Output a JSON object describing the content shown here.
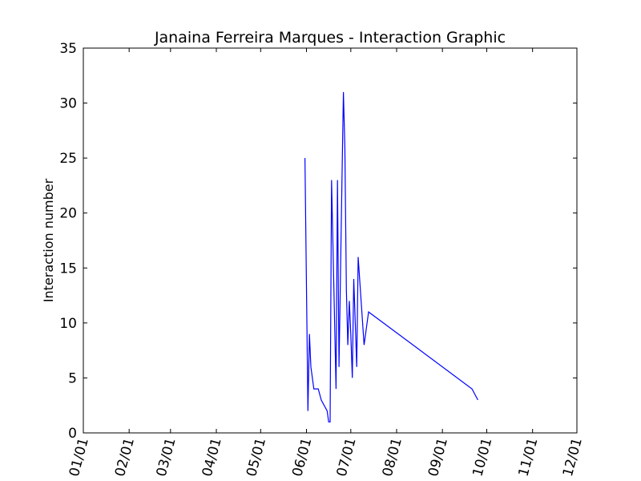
{
  "chart_data": {
    "type": "line",
    "title": "Janaina Ferreira Marques - Interaction Graphic",
    "xlabel": "",
    "ylabel": "Interaction number",
    "x_tick_labels": [
      "01/01",
      "02/01",
      "03/01",
      "04/01",
      "05/01",
      "06/01",
      "07/01",
      "08/01",
      "09/01",
      "10/01",
      "11/01",
      "12/01"
    ],
    "y_tick_labels": [
      "0",
      "5",
      "10",
      "15",
      "20",
      "25",
      "30",
      "35"
    ],
    "xlim": [
      "01/01",
      "12/01"
    ],
    "ylim": [
      0,
      35
    ],
    "grid": false,
    "line_color": "#0000ff",
    "series": [
      {
        "points": [
          {
            "x": "05/31",
            "y": 25
          },
          {
            "x": "06/02",
            "y": 2
          },
          {
            "x": "06/03",
            "y": 9
          },
          {
            "x": "06/04",
            "y": 6
          },
          {
            "x": "06/06",
            "y": 4
          },
          {
            "x": "06/09",
            "y": 4
          },
          {
            "x": "06/11",
            "y": 3
          },
          {
            "x": "06/15",
            "y": 2
          },
          {
            "x": "06/16",
            "y": 1
          },
          {
            "x": "06/17",
            "y": 1
          },
          {
            "x": "06/18",
            "y": 23
          },
          {
            "x": "06/21",
            "y": 4
          },
          {
            "x": "06/22",
            "y": 23
          },
          {
            "x": "06/23",
            "y": 6
          },
          {
            "x": "06/25",
            "y": 23
          },
          {
            "x": "06/26",
            "y": 31
          },
          {
            "x": "06/27",
            "y": 26
          },
          {
            "x": "06/28",
            "y": 13
          },
          {
            "x": "06/29",
            "y": 8
          },
          {
            "x": "06/30",
            "y": 12
          },
          {
            "x": "07/01",
            "y": 9
          },
          {
            "x": "07/02",
            "y": 5
          },
          {
            "x": "07/03",
            "y": 14
          },
          {
            "x": "07/04",
            "y": 10
          },
          {
            "x": "07/05",
            "y": 6
          },
          {
            "x": "07/06",
            "y": 16
          },
          {
            "x": "07/08",
            "y": 12
          },
          {
            "x": "07/10",
            "y": 8
          },
          {
            "x": "07/13",
            "y": 11
          },
          {
            "x": "09/21",
            "y": 4
          },
          {
            "x": "09/25",
            "y": 3
          }
        ]
      }
    ]
  }
}
